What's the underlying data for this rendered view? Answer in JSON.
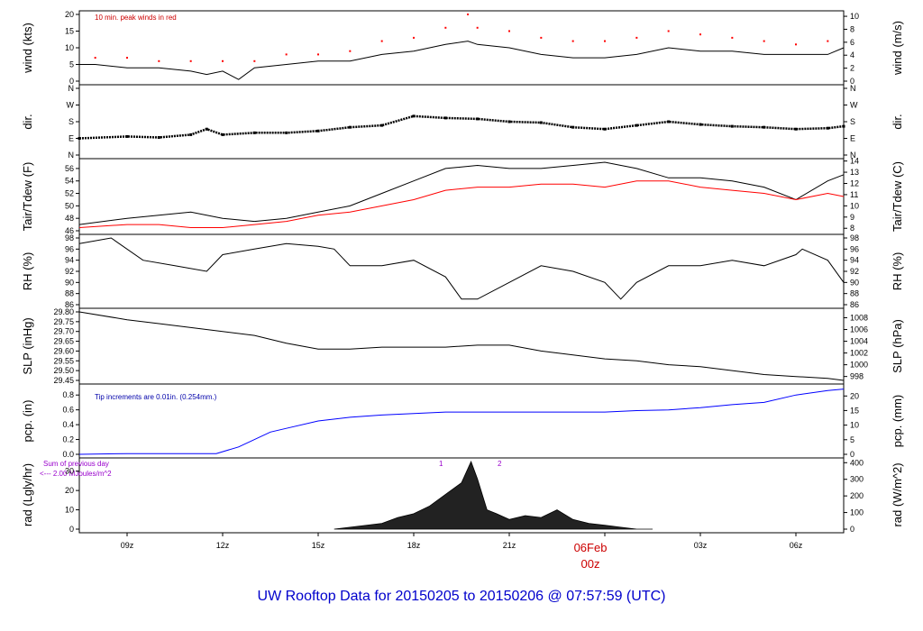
{
  "footer": {
    "title": "UW Rooftop Data for 20150205  to  20150206 @ 07:57:59  (UTC)"
  },
  "time_axis": {
    "start_hour": 7.5,
    "end_hour": 31.5,
    "ticks": [
      {
        "hour": 9,
        "label": "09z"
      },
      {
        "hour": 12,
        "label": "12z"
      },
      {
        "hour": 15,
        "label": "15z"
      },
      {
        "hour": 18,
        "label": "18z"
      },
      {
        "hour": 21,
        "label": "21z"
      },
      {
        "hour": 24,
        "label": "06Feb"
      },
      {
        "hour": 27,
        "label": "03z"
      },
      {
        "hour": 30,
        "label": "06z"
      }
    ],
    "day_label": "06Feb",
    "day_sub": "00z"
  },
  "panels": {
    "wind": {
      "left_label": "wind (kts)",
      "right_label": "wind (m/s)",
      "annotation": "10 min. peak winds in red",
      "left_ticks": [
        "0",
        "5",
        "10",
        "15",
        "20"
      ],
      "right_ticks": [
        "0",
        "2",
        "4",
        "6",
        "8",
        "10"
      ]
    },
    "dir": {
      "left_label": "dir.",
      "right_label": "dir.",
      "ticks": [
        "N",
        "E",
        "S",
        "W",
        "N"
      ]
    },
    "temp": {
      "left_label": "Tair/Tdew (F)",
      "right_label": "Tair/Tdew (C)",
      "left_ticks": [
        "46",
        "48",
        "50",
        "52",
        "54",
        "56"
      ],
      "right_ticks": [
        "8",
        "9",
        "10",
        "11",
        "12",
        "13",
        "14"
      ]
    },
    "rh": {
      "left_label": "RH (%)",
      "right_label": "RH (%)",
      "ticks": [
        "86",
        "88",
        "90",
        "92",
        "94",
        "96",
        "98"
      ]
    },
    "slp": {
      "left_label": "SLP (inHg)",
      "right_label": "SLP (hPa)",
      "left_ticks": [
        "29.45",
        "29.50",
        "29.55",
        "29.60",
        "29.65",
        "29.70",
        "29.75",
        "29.80"
      ],
      "right_ticks": [
        "998",
        "1000",
        "1002",
        "1004",
        "1006",
        "1008"
      ]
    },
    "pcp": {
      "left_label": "pcp. (in)",
      "right_label": "pcp. (mm)",
      "annotation": "Tip increments are 0.01in. (0.254mm.)",
      "left_ticks": [
        "0.0",
        "0.2",
        "0.4",
        "0.6",
        "0.8"
      ],
      "right_ticks": [
        "0",
        "5",
        "10",
        "15",
        "20"
      ]
    },
    "rad": {
      "left_label": "rad (Lgly/hr)",
      "right_label": "rad (W/m^2)",
      "left_ticks": [
        "0",
        "10",
        "20",
        "30"
      ],
      "right_ticks": [
        "0",
        "100",
        "200",
        "300",
        "400"
      ],
      "sum_line1": "Sum of previous day",
      "sum_line2": "<--- 2.00 MJoules/m^2",
      "marker1": "1",
      "marker2": "2"
    }
  },
  "chart_data": [
    {
      "type": "line",
      "title": "",
      "ylabel": "wind (kts)",
      "ylim": [
        0,
        20
      ],
      "series": [
        {
          "name": "wind",
          "x": [
            7.5,
            8,
            9,
            10,
            11,
            11.5,
            12,
            12.5,
            13,
            14,
            15,
            16,
            17,
            18,
            19,
            19.7,
            20,
            21,
            22,
            23,
            24,
            25,
            26,
            27,
            28,
            29,
            30,
            31,
            31.5
          ],
          "values": [
            5,
            5,
            4,
            4,
            3,
            2,
            3,
            0.5,
            4,
            5,
            6,
            6,
            8,
            9,
            11,
            12,
            11,
            10,
            8,
            7,
            7,
            8,
            10,
            9,
            9,
            8,
            8,
            8,
            10
          ]
        },
        {
          "name": "10 min. peak winds",
          "x": [
            8,
            9,
            10,
            11,
            12,
            13,
            14,
            15,
            16,
            17,
            18,
            19,
            19.7,
            20,
            21,
            22,
            23,
            24,
            25,
            26,
            27,
            28,
            29,
            30,
            31
          ],
          "values": [
            7,
            7,
            6,
            6,
            6,
            6,
            8,
            8,
            9,
            12,
            13,
            16,
            20,
            16,
            15,
            13,
            12,
            12,
            13,
            15,
            14,
            13,
            12,
            11,
            12
          ]
        }
      ]
    },
    {
      "type": "scatter",
      "title": "",
      "ylabel": "dir.",
      "ylim": [
        0,
        360
      ],
      "series": [
        {
          "name": "dir",
          "x": [
            7.5,
            9,
            10,
            11,
            11.5,
            12,
            13,
            14,
            15,
            16,
            17,
            18,
            19,
            20,
            21,
            22,
            23,
            24,
            25,
            26,
            27,
            28,
            29,
            30,
            31,
            31.5
          ],
          "values": [
            90,
            100,
            95,
            110,
            140,
            110,
            120,
            120,
            130,
            150,
            160,
            210,
            200,
            195,
            180,
            175,
            150,
            140,
            160,
            180,
            165,
            155,
            150,
            140,
            145,
            155
          ]
        }
      ]
    },
    {
      "type": "line",
      "title": "",
      "ylabel": "Tair/Tdew (F)",
      "ylim": [
        46,
        57
      ],
      "series": [
        {
          "name": "Tair",
          "x": [
            7.5,
            9,
            10,
            11,
            12,
            13,
            14,
            15,
            16,
            17,
            18,
            19,
            20,
            21,
            22,
            23,
            24,
            25,
            26,
            27,
            28,
            29,
            30,
            31,
            31.5
          ],
          "values": [
            47,
            48,
            48.5,
            49,
            48,
            47.5,
            48,
            49,
            50,
            52,
            54,
            56,
            56.5,
            56,
            56,
            56.5,
            57,
            56,
            54.5,
            54.5,
            54,
            53,
            51,
            54,
            55
          ]
        },
        {
          "name": "Tdew",
          "x": [
            7.5,
            9,
            10,
            11,
            12,
            13,
            14,
            15,
            16,
            17,
            18,
            19,
            20,
            21,
            22,
            23,
            24,
            25,
            26,
            27,
            28,
            29,
            30,
            31,
            31.5
          ],
          "values": [
            46.5,
            47,
            47,
            46.5,
            46.5,
            47,
            47.5,
            48.5,
            49,
            50,
            51,
            52.5,
            53,
            53,
            53.5,
            53.5,
            53,
            54,
            54,
            53,
            52.5,
            52,
            51,
            52,
            51.5
          ]
        }
      ]
    },
    {
      "type": "line",
      "title": "",
      "ylabel": "RH (%)",
      "ylim": [
        86,
        98
      ],
      "series": [
        {
          "name": "RH",
          "x": [
            7.5,
            8.5,
            9.5,
            10.5,
            11.5,
            12,
            13,
            14,
            15,
            15.5,
            16,
            17,
            18,
            19,
            19.5,
            20,
            21,
            22,
            23,
            24,
            24.5,
            25,
            26,
            27,
            28,
            29,
            30,
            30.2,
            31,
            31.5
          ],
          "values": [
            97,
            98,
            94,
            93,
            92,
            95,
            96,
            97,
            96.5,
            96,
            93,
            93,
            94,
            91,
            87,
            87,
            90,
            93,
            92,
            90,
            87,
            90,
            93,
            93,
            94,
            93,
            95,
            96,
            94,
            90
          ]
        }
      ]
    },
    {
      "type": "line",
      "title": "",
      "ylabel": "SLP (inHg)",
      "ylim": [
        29.45,
        29.8
      ],
      "series": [
        {
          "name": "SLP",
          "x": [
            7.5,
            9,
            10,
            11,
            12,
            13,
            14,
            15,
            16,
            17,
            18,
            19,
            20,
            21,
            22,
            23,
            24,
            25,
            26,
            27,
            28,
            29,
            30,
            31,
            31.5
          ],
          "values": [
            29.8,
            29.76,
            29.74,
            29.72,
            29.7,
            29.68,
            29.64,
            29.61,
            29.61,
            29.62,
            29.62,
            29.62,
            29.63,
            29.63,
            29.6,
            29.58,
            29.56,
            29.55,
            29.53,
            29.52,
            29.5,
            29.48,
            29.47,
            29.46,
            29.45
          ]
        }
      ]
    },
    {
      "type": "area",
      "title": "",
      "ylabel": "pcp. (in)",
      "ylim": [
        0,
        0.9
      ],
      "series": [
        {
          "name": "pcp",
          "x": [
            7.5,
            9,
            10,
            11,
            11.8,
            12.5,
            13.5,
            14,
            15,
            16,
            17,
            18,
            19,
            20,
            21,
            22,
            23,
            24,
            25,
            26,
            27,
            28,
            29,
            30,
            31,
            31.5
          ],
          "values": [
            0,
            0.01,
            0.01,
            0.01,
            0.01,
            0.1,
            0.3,
            0.35,
            0.45,
            0.5,
            0.53,
            0.55,
            0.57,
            0.57,
            0.57,
            0.57,
            0.57,
            0.57,
            0.59,
            0.6,
            0.63,
            0.67,
            0.7,
            0.8,
            0.86,
            0.88
          ]
        }
      ]
    },
    {
      "type": "area",
      "title": "",
      "ylabel": "rad (Lgly/hr)",
      "ylim": [
        0,
        35
      ],
      "series": [
        {
          "name": "rad",
          "x": [
            15.5,
            16,
            17,
            17.5,
            18,
            18.5,
            19,
            19.5,
            19.8,
            20,
            20.3,
            20.6,
            21,
            21.5,
            22,
            22.5,
            23,
            23.5,
            24,
            24.5,
            25,
            25.5
          ],
          "values": [
            0,
            1,
            3,
            6,
            8,
            12,
            18,
            24,
            35,
            26,
            10,
            8,
            5,
            7,
            6,
            10,
            5,
            3,
            2,
            1,
            0,
            0
          ]
        }
      ]
    }
  ]
}
